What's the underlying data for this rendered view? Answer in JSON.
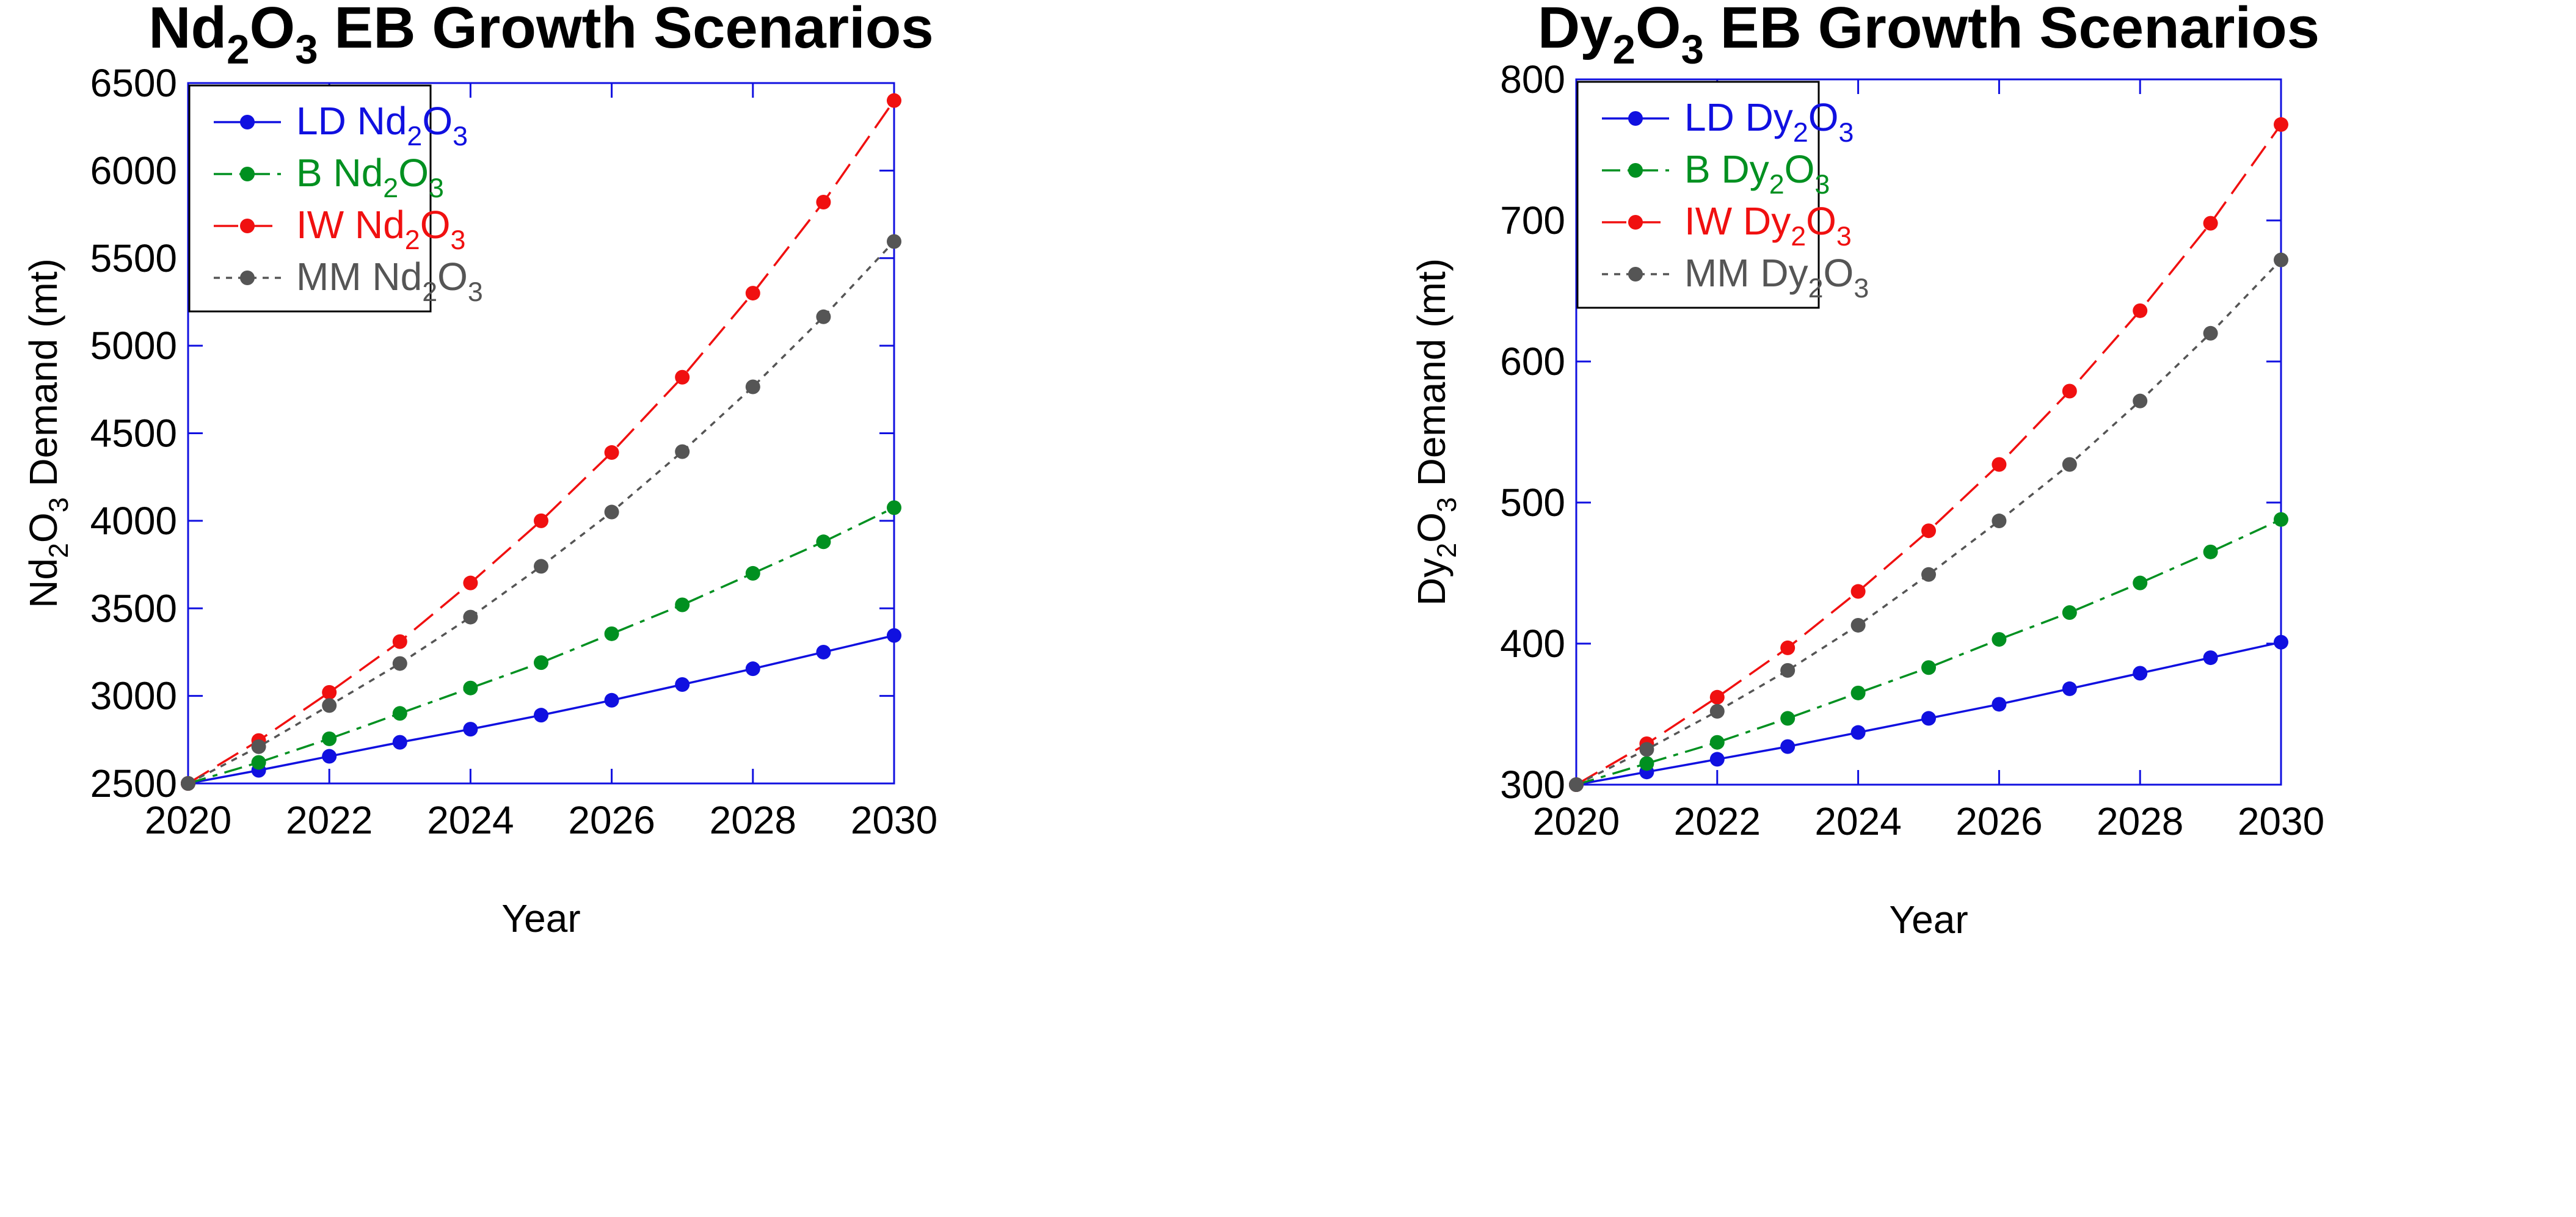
{
  "chart_data": [
    {
      "type": "line",
      "title": {
        "base": "Nd",
        "sub1": "2",
        "mid": "O",
        "sub2": "3",
        "rest": " EB Growth Scenarios"
      },
      "ylabel": {
        "base": "Nd",
        "sub1": "2",
        "mid": "O",
        "sub2": "3",
        "rest": " Demand (mt)"
      },
      "xlabel": "Year",
      "x": [
        2020,
        2021,
        2022,
        2023,
        2024,
        2025,
        2026,
        2027,
        2028,
        2029,
        2030
      ],
      "xlim": [
        2020,
        2030
      ],
      "ylim": [
        2500,
        6500
      ],
      "xticks": [
        2020,
        2022,
        2024,
        2026,
        2028,
        2030
      ],
      "yticks": [
        2500,
        3000,
        3500,
        4000,
        4500,
        5000,
        5500,
        6000,
        6500
      ],
      "legend_position": "top-left",
      "series": [
        {
          "name": "LD",
          "label": {
            "prefix": "LD ",
            "base": "Nd",
            "sub1": "2",
            "mid": "O",
            "sub2": "3"
          },
          "color": "#1010e0",
          "dash": "none",
          "values": [
            2500,
            2575,
            2655,
            2735,
            2810,
            2890,
            2975,
            3065,
            3155,
            3250,
            3345
          ]
        },
        {
          "name": "B",
          "label": {
            "prefix": "B ",
            "base": "Nd",
            "sub1": "2",
            "mid": "O",
            "sub2": "3"
          },
          "color": "#009020",
          "dash": "long-short",
          "values": [
            2500,
            2620,
            2755,
            2900,
            3045,
            3190,
            3355,
            3520,
            3700,
            3880,
            4075
          ]
        },
        {
          "name": "IW",
          "label": {
            "prefix": "IW ",
            "base": "Nd",
            "sub1": "2",
            "mid": "O",
            "sub2": "3"
          },
          "color": "#f01010",
          "dash": "long",
          "values": [
            2500,
            2745,
            3020,
            3310,
            3645,
            4000,
            4390,
            4820,
            5300,
            5820,
            6400
          ]
        },
        {
          "name": "MM",
          "label": {
            "prefix": "MM ",
            "base": "Nd",
            "sub1": "2",
            "mid": "O",
            "sub2": "3"
          },
          "color": "#555555",
          "dash": "short",
          "values": [
            2500,
            2710,
            2945,
            3185,
            3450,
            3740,
            4050,
            4395,
            4765,
            5165,
            5595
          ]
        }
      ]
    },
    {
      "type": "line",
      "title": {
        "base": "Dy",
        "sub1": "2",
        "mid": "O",
        "sub2": "3",
        "rest": " EB Growth Scenarios"
      },
      "ylabel": {
        "base": "Dy",
        "sub1": "2",
        "mid": "O",
        "sub2": "3",
        "rest": " Demand (mt)"
      },
      "xlabel": "Year",
      "x": [
        2020,
        2021,
        2022,
        2023,
        2024,
        2025,
        2026,
        2027,
        2028,
        2029,
        2030
      ],
      "xlim": [
        2020,
        2030
      ],
      "ylim": [
        300,
        800
      ],
      "xticks": [
        2020,
        2022,
        2024,
        2026,
        2028,
        2030
      ],
      "yticks": [
        300,
        400,
        500,
        600,
        700,
        800
      ],
      "legend_position": "top-left",
      "series": [
        {
          "name": "LD",
          "label": {
            "prefix": "LD ",
            "base": "Dy",
            "sub1": "2",
            "mid": "O",
            "sub2": "3"
          },
          "color": "#1010e0",
          "dash": "none",
          "values": [
            300,
            309,
            318,
            327,
            337,
            347,
            357,
            368,
            379,
            390,
            401
          ]
        },
        {
          "name": "B",
          "label": {
            "prefix": "B ",
            "base": "Dy",
            "sub1": "2",
            "mid": "O",
            "sub2": "3"
          },
          "color": "#009020",
          "dash": "long-short",
          "values": [
            300,
            315,
            330,
            347,
            365,
            383,
            403,
            422,
            443,
            465,
            488
          ]
        },
        {
          "name": "IW",
          "label": {
            "prefix": "IW ",
            "base": "Dy",
            "sub1": "2",
            "mid": "O",
            "sub2": "3"
          },
          "color": "#f01010",
          "dash": "long",
          "values": [
            300,
            329,
            362,
            397,
            437,
            480,
            527,
            579,
            636,
            698,
            768
          ]
        },
        {
          "name": "MM",
          "label": {
            "prefix": "MM ",
            "base": "Dy",
            "sub1": "2",
            "mid": "O",
            "sub2": "3"
          },
          "color": "#555555",
          "dash": "short",
          "values": [
            300,
            325,
            352,
            381,
            413,
            449,
            487,
            527,
            572,
            620,
            672
          ]
        }
      ]
    }
  ]
}
